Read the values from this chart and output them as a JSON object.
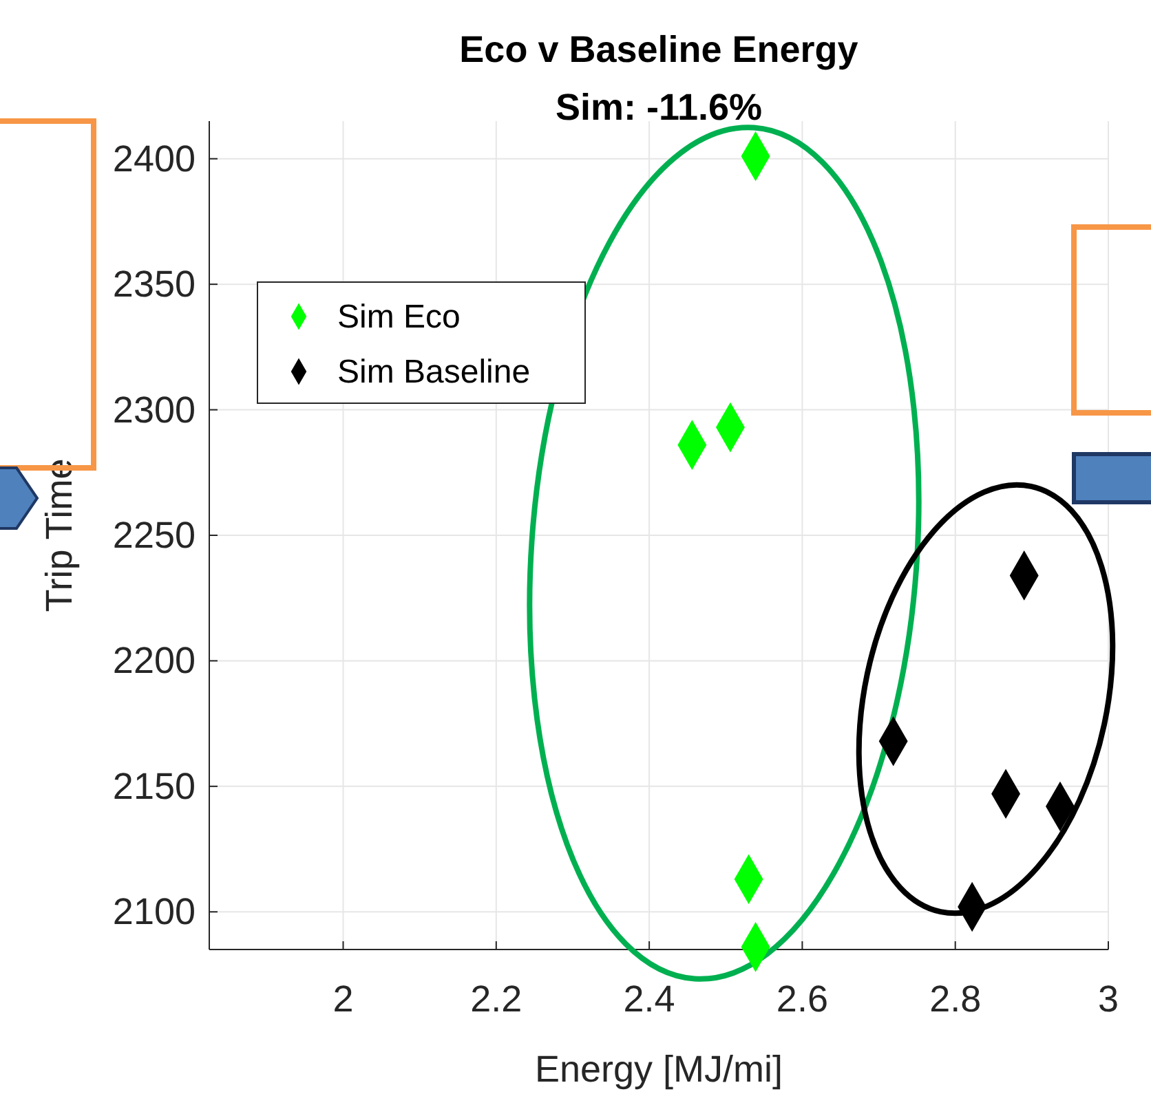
{
  "chart_data": {
    "type": "scatter",
    "title": "Eco v Baseline Energy",
    "subtitle": "Sim: -11.6%",
    "xlabel": "Energy [MJ/mi]",
    "ylabel": "Trip Time",
    "xlim": [
      1.825,
      3
    ],
    "xticks": [
      2,
      2.2,
      2.4,
      2.6,
      2.8,
      3
    ],
    "ylim": [
      2085,
      2415
    ],
    "yticks": [
      2100,
      2150,
      2200,
      2250,
      2300,
      2350,
      2400
    ],
    "grid": true,
    "legend": "top left",
    "marker": "diamond",
    "series": [
      {
        "name": "Sim Eco",
        "color": "#00ff00",
        "x": [
          2.539,
          2.506,
          2.456,
          2.53,
          2.539
        ],
        "values": [
          2401,
          2293,
          2286,
          2113,
          2086
        ]
      },
      {
        "name": "Sim Baseline",
        "color": "#000000",
        "x": [
          2.89,
          2.719,
          2.866,
          2.937,
          2.822
        ],
        "values": [
          2234,
          2168,
          2147,
          2142,
          2102
        ]
      }
    ]
  }
}
